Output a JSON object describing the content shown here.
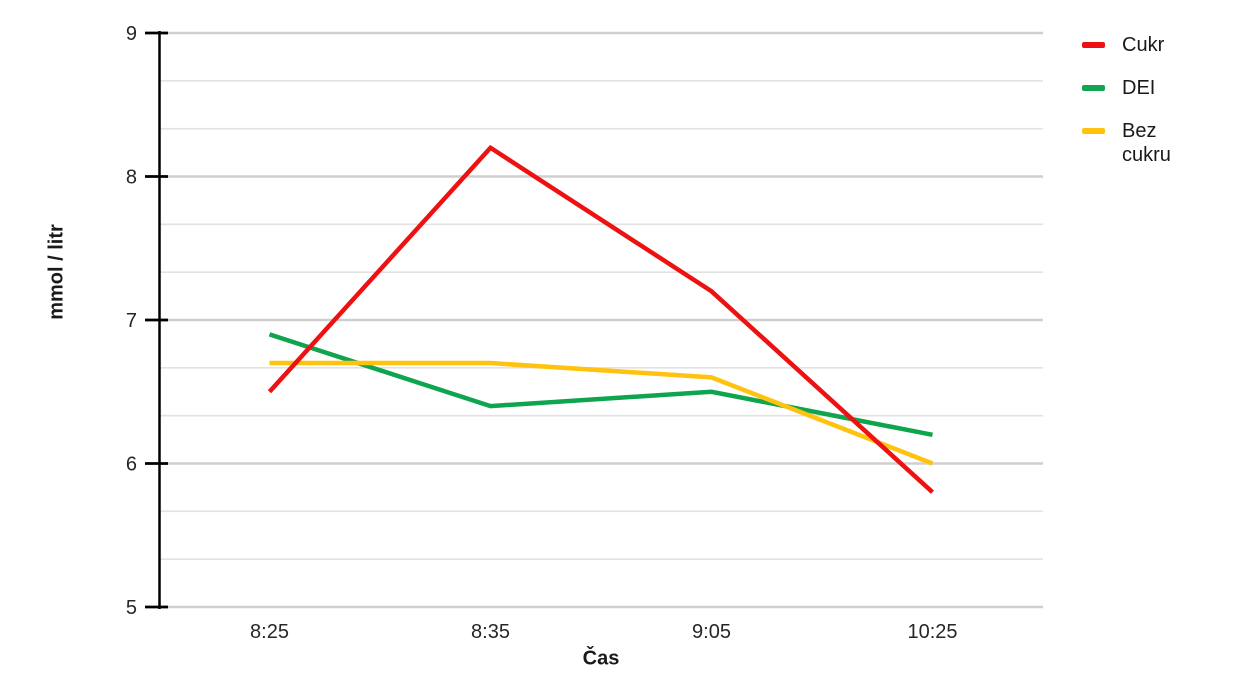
{
  "chart_data": {
    "type": "line",
    "categories": [
      "8:25",
      "8:35",
      "9:05",
      "10:25"
    ],
    "series": [
      {
        "name": "Cukr",
        "color": "#ee1111",
        "values": [
          6.5,
          8.2,
          7.2,
          5.8
        ]
      },
      {
        "name": "DEI",
        "color": "#0fa44e",
        "values": [
          6.9,
          6.4,
          6.5,
          6.2
        ]
      },
      {
        "name": "Bez cukru",
        "color": "#ffc20e",
        "values": [
          6.7,
          6.7,
          6.6,
          6.0
        ]
      }
    ],
    "xlabel": "Čas",
    "ylabel": "mmol / litr",
    "ylim": [
      5,
      9
    ],
    "y_major_step": 1,
    "y_minor_divisions_per_major": 3,
    "y_tick_labels": [
      "5",
      "6",
      "7",
      "8",
      "9"
    ],
    "grid": "horizontal",
    "legend_position": "right",
    "colors": {
      "axis": "#000000",
      "grid_major": "#cfcfcf",
      "grid_minor": "#e2e2e2",
      "text": "#262626"
    }
  }
}
